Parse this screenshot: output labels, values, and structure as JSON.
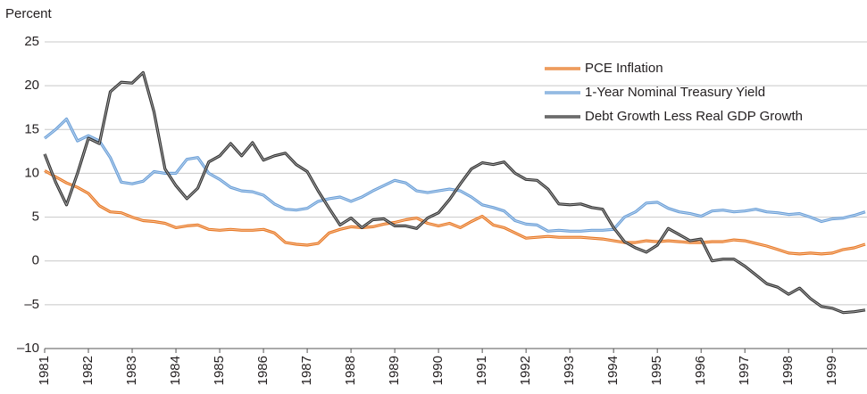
{
  "chart_data": {
    "type": "line",
    "y_axis_label": "Percent",
    "categories": [
      "1981",
      null,
      null,
      null,
      "1982",
      null,
      null,
      null,
      "1983",
      null,
      null,
      null,
      "1984",
      null,
      null,
      null,
      "1985",
      null,
      null,
      null,
      "1986",
      null,
      null,
      null,
      "1987",
      null,
      null,
      null,
      "1988",
      null,
      null,
      null,
      "1989",
      null,
      null,
      null,
      "1990",
      null,
      null,
      null,
      "1991",
      null,
      null,
      null,
      "1992",
      null,
      null,
      null,
      "1993",
      null,
      null,
      null,
      "1994",
      null,
      null,
      null,
      "1995",
      null,
      null,
      null,
      "1996",
      null,
      null,
      null,
      "1997",
      null,
      null,
      null,
      "1998",
      null,
      null,
      null,
      "1999",
      null,
      null,
      null
    ],
    "series": [
      {
        "name": "PCE Inflation",
        "color": "#e87722",
        "values": [
          10.3,
          9.6,
          8.9,
          8.4,
          7.7,
          6.3,
          5.6,
          5.5,
          5.0,
          4.6,
          4.5,
          4.3,
          3.8,
          4.0,
          4.1,
          3.6,
          3.5,
          3.6,
          3.5,
          3.5,
          3.6,
          3.2,
          2.1,
          1.9,
          1.8,
          2.0,
          3.2,
          3.6,
          3.9,
          3.8,
          3.9,
          4.2,
          4.4,
          4.7,
          4.9,
          4.3,
          4.0,
          4.3,
          3.8,
          4.5,
          5.1,
          4.1,
          3.8,
          3.2,
          2.6,
          2.7,
          2.8,
          2.7,
          2.7,
          2.7,
          2.6,
          2.5,
          2.3,
          2.1,
          2.1,
          2.3,
          2.2,
          2.3,
          2.2,
          2.1,
          2.1,
          2.2,
          2.2,
          2.4,
          2.3,
          2.0,
          1.7,
          1.3,
          0.9,
          0.8,
          0.9,
          0.8,
          0.9,
          1.3,
          1.5,
          1.9
        ]
      },
      {
        "name": "1-Year Nominal Treasury Yield",
        "color": "#6a9fd8",
        "values": [
          14.0,
          15.0,
          16.2,
          13.7,
          14.3,
          13.7,
          11.8,
          9.0,
          8.8,
          9.1,
          10.2,
          10.0,
          10.0,
          11.6,
          11.8,
          10.0,
          9.3,
          8.4,
          8.0,
          7.9,
          7.5,
          6.5,
          5.9,
          5.8,
          6.0,
          6.8,
          7.1,
          7.3,
          6.8,
          7.3,
          8.0,
          8.6,
          9.2,
          8.9,
          8.0,
          7.8,
          8.0,
          8.2,
          8.0,
          7.3,
          6.4,
          6.1,
          5.7,
          4.6,
          4.2,
          4.1,
          3.4,
          3.5,
          3.4,
          3.4,
          3.5,
          3.5,
          3.6,
          5.0,
          5.6,
          6.6,
          6.7,
          6.0,
          5.6,
          5.4,
          5.1,
          5.7,
          5.8,
          5.6,
          5.7,
          5.9,
          5.6,
          5.5,
          5.3,
          5.4,
          5.0,
          4.5,
          4.8,
          4.9,
          5.2,
          5.6
        ]
      },
      {
        "name": "Debt Growth Less Real GDP Growth",
        "color": "#333333",
        "values": [
          12.2,
          9.0,
          6.4,
          10.0,
          14.0,
          13.4,
          19.3,
          20.4,
          20.3,
          21.5,
          17.0,
          10.5,
          8.6,
          7.1,
          8.3,
          11.3,
          12.0,
          13.4,
          12.0,
          13.5,
          11.5,
          12.0,
          12.3,
          11.0,
          10.2,
          8.0,
          6.0,
          4.1,
          4.9,
          3.8,
          4.7,
          4.8,
          4.0,
          4.0,
          3.7,
          4.9,
          5.5,
          7.0,
          8.8,
          10.5,
          11.2,
          11.0,
          11.3,
          10.0,
          9.3,
          9.2,
          8.2,
          6.5,
          6.4,
          6.5,
          6.1,
          5.9,
          3.8,
          2.2,
          1.5,
          1.0,
          1.8,
          3.7,
          3.0,
          2.3,
          2.5,
          0.0,
          0.2,
          0.2,
          -0.6,
          -1.6,
          -2.6,
          -3.0,
          -3.8,
          -3.1,
          -4.3,
          -5.2,
          -5.4,
          -5.9,
          -5.8,
          -5.6
        ]
      }
    ],
    "ylim": [
      -10,
      25
    ],
    "yticks": [
      {
        "value": -10,
        "label": "–10"
      },
      {
        "value": -5,
        "label": "–5"
      },
      0,
      5,
      10,
      15,
      20,
      25
    ],
    "grid": true,
    "legend": "upper right"
  }
}
